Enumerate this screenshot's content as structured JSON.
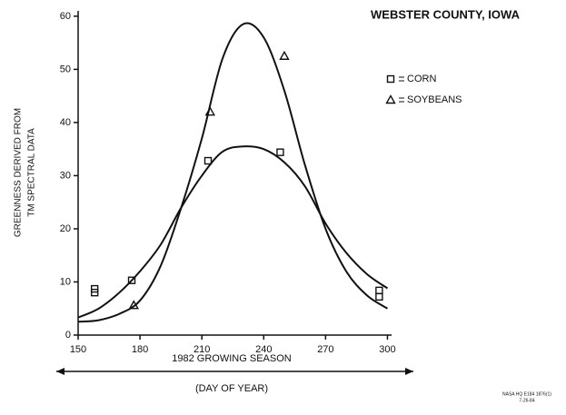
{
  "chart_data": {
    "type": "scatter",
    "title": "WEBSTER COUNTY, IOWA",
    "ylabel": [
      "GREENNESS DERIVED FROM",
      "TM SPECTRAL DATA"
    ],
    "xlabel": [
      "1982 GROWING SEASON",
      "(DAY OF YEAR)"
    ],
    "note": [
      "NASA HQ E184 1876(1)",
      "7-26-84"
    ],
    "xlim": [
      150,
      302
    ],
    "ylim": [
      0,
      61
    ],
    "xticks": [
      150,
      180,
      210,
      240,
      270,
      300
    ],
    "yticks": [
      0,
      10,
      20,
      30,
      40,
      50,
      60
    ],
    "color": "#111111",
    "series": [
      {
        "name": "CORN",
        "marker": "square",
        "x": [
          158,
          158,
          176,
          213,
          248,
          296,
          296
        ],
        "values": [
          8.7,
          8.0,
          10.3,
          32.8,
          34.4,
          8.4,
          7.2
        ],
        "fit": {
          "x": [
            150,
            160,
            170,
            180,
            190,
            200,
            210,
            220,
            230,
            240,
            250,
            260,
            270,
            280,
            290,
            300
          ],
          "values": [
            3.3,
            5,
            8,
            12,
            17,
            24,
            30,
            34.5,
            35.5,
            35,
            32.5,
            28,
            21,
            15.5,
            11.5,
            8.8
          ]
        }
      },
      {
        "name": "SOYBEANS",
        "marker": "triangle",
        "x": [
          177,
          214,
          250
        ],
        "values": [
          5.6,
          42,
          52.5
        ],
        "fit": {
          "x": [
            150,
            160,
            170,
            180,
            190,
            200,
            210,
            220,
            230,
            240,
            250,
            260,
            270,
            280,
            290,
            300
          ],
          "values": [
            2.5,
            2.8,
            4,
            6.5,
            13,
            24,
            37,
            52,
            58.5,
            56,
            46,
            32,
            20,
            12,
            7.5,
            5
          ]
        }
      }
    ]
  }
}
